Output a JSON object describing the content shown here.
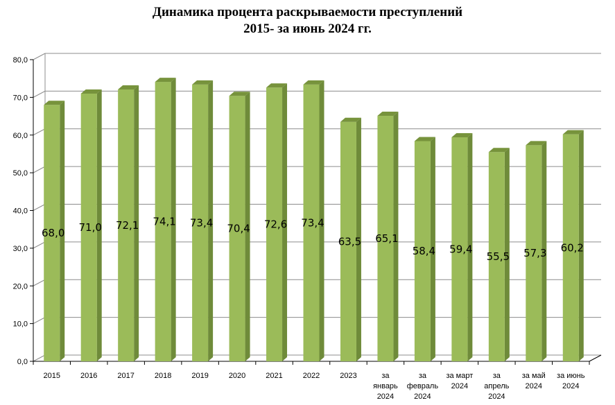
{
  "title_line1": "Динамика процента раскрываемости преступлений",
  "title_line2": "2015- за июнь 2024 гг.",
  "chart_data": {
    "type": "bar",
    "title": "Динамика процента раскрываемости преступлений 2015- за июнь 2024 гг.",
    "categories": [
      "2015",
      "2016",
      "2017",
      "2018",
      "2019",
      "2020",
      "2021",
      "2022",
      "2023",
      "за январь 2024",
      "за февраль 2024",
      "за март 2024",
      "за апрель 2024",
      "за май 2024",
      "за июнь 2024"
    ],
    "category_lines": [
      [
        "2015"
      ],
      [
        "2016"
      ],
      [
        "2017"
      ],
      [
        "2018"
      ],
      [
        "2019"
      ],
      [
        "2020"
      ],
      [
        "2021"
      ],
      [
        "2022"
      ],
      [
        "2023"
      ],
      [
        "за",
        "январь",
        "2024"
      ],
      [
        "за",
        "февраль",
        "2024"
      ],
      [
        "за март",
        "2024"
      ],
      [
        "за",
        "апрель",
        "2024"
      ],
      [
        "за май",
        "2024"
      ],
      [
        "за июнь",
        "2024"
      ]
    ],
    "values": [
      68.0,
      71.0,
      72.1,
      74.1,
      73.4,
      70.4,
      72.6,
      73.4,
      63.5,
      65.1,
      58.4,
      59.4,
      55.5,
      57.3,
      60.2
    ],
    "value_labels": [
      "68,0",
      "71,0",
      "72,1",
      "74,1",
      "73,4",
      "70,4",
      "72,6",
      "73,4",
      "63,5",
      "65,1",
      "58,4",
      "59,4",
      "55,5",
      "57,3",
      "60,2"
    ],
    "y_ticks": [
      "0,0",
      "10,0",
      "20,0",
      "30,0",
      "40,0",
      "50,0",
      "60,0",
      "70,0",
      "80,0"
    ],
    "ylim": [
      0,
      80
    ],
    "grid": true,
    "legend": "none",
    "colors": {
      "bar_front": "#9bbb59",
      "bar_side": "#6f8b3a",
      "bar_top": "#77933c",
      "grid": "#8c8c8c"
    }
  }
}
